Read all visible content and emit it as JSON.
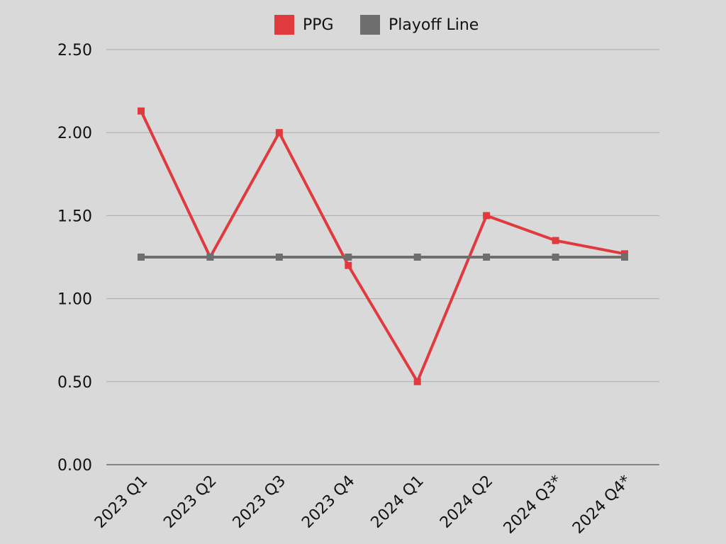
{
  "chart_data": {
    "type": "line",
    "categories": [
      "2023 Q1",
      "2023 Q2",
      "2023 Q3",
      "2023 Q4",
      "2024 Q1",
      "2024 Q2",
      "2024 Q3*",
      "2024 Q4*"
    ],
    "series": [
      {
        "name": "PPG",
        "color": "#e03a3e",
        "values": [
          2.13,
          1.25,
          2.0,
          1.2,
          0.5,
          1.5,
          1.35,
          1.27
        ]
      },
      {
        "name": "Playoff Line",
        "color": "#6e6e6e",
        "values": [
          1.25,
          1.25,
          1.25,
          1.25,
          1.25,
          1.25,
          1.25,
          1.25
        ]
      }
    ],
    "y_ticks": [
      "0.00",
      "0.50",
      "1.00",
      "1.50",
      "2.00",
      "2.50"
    ],
    "ylim": [
      0,
      2.5
    ],
    "grid": true,
    "legend_position": "top-center",
    "title": "",
    "xlabel": "",
    "ylabel": ""
  }
}
